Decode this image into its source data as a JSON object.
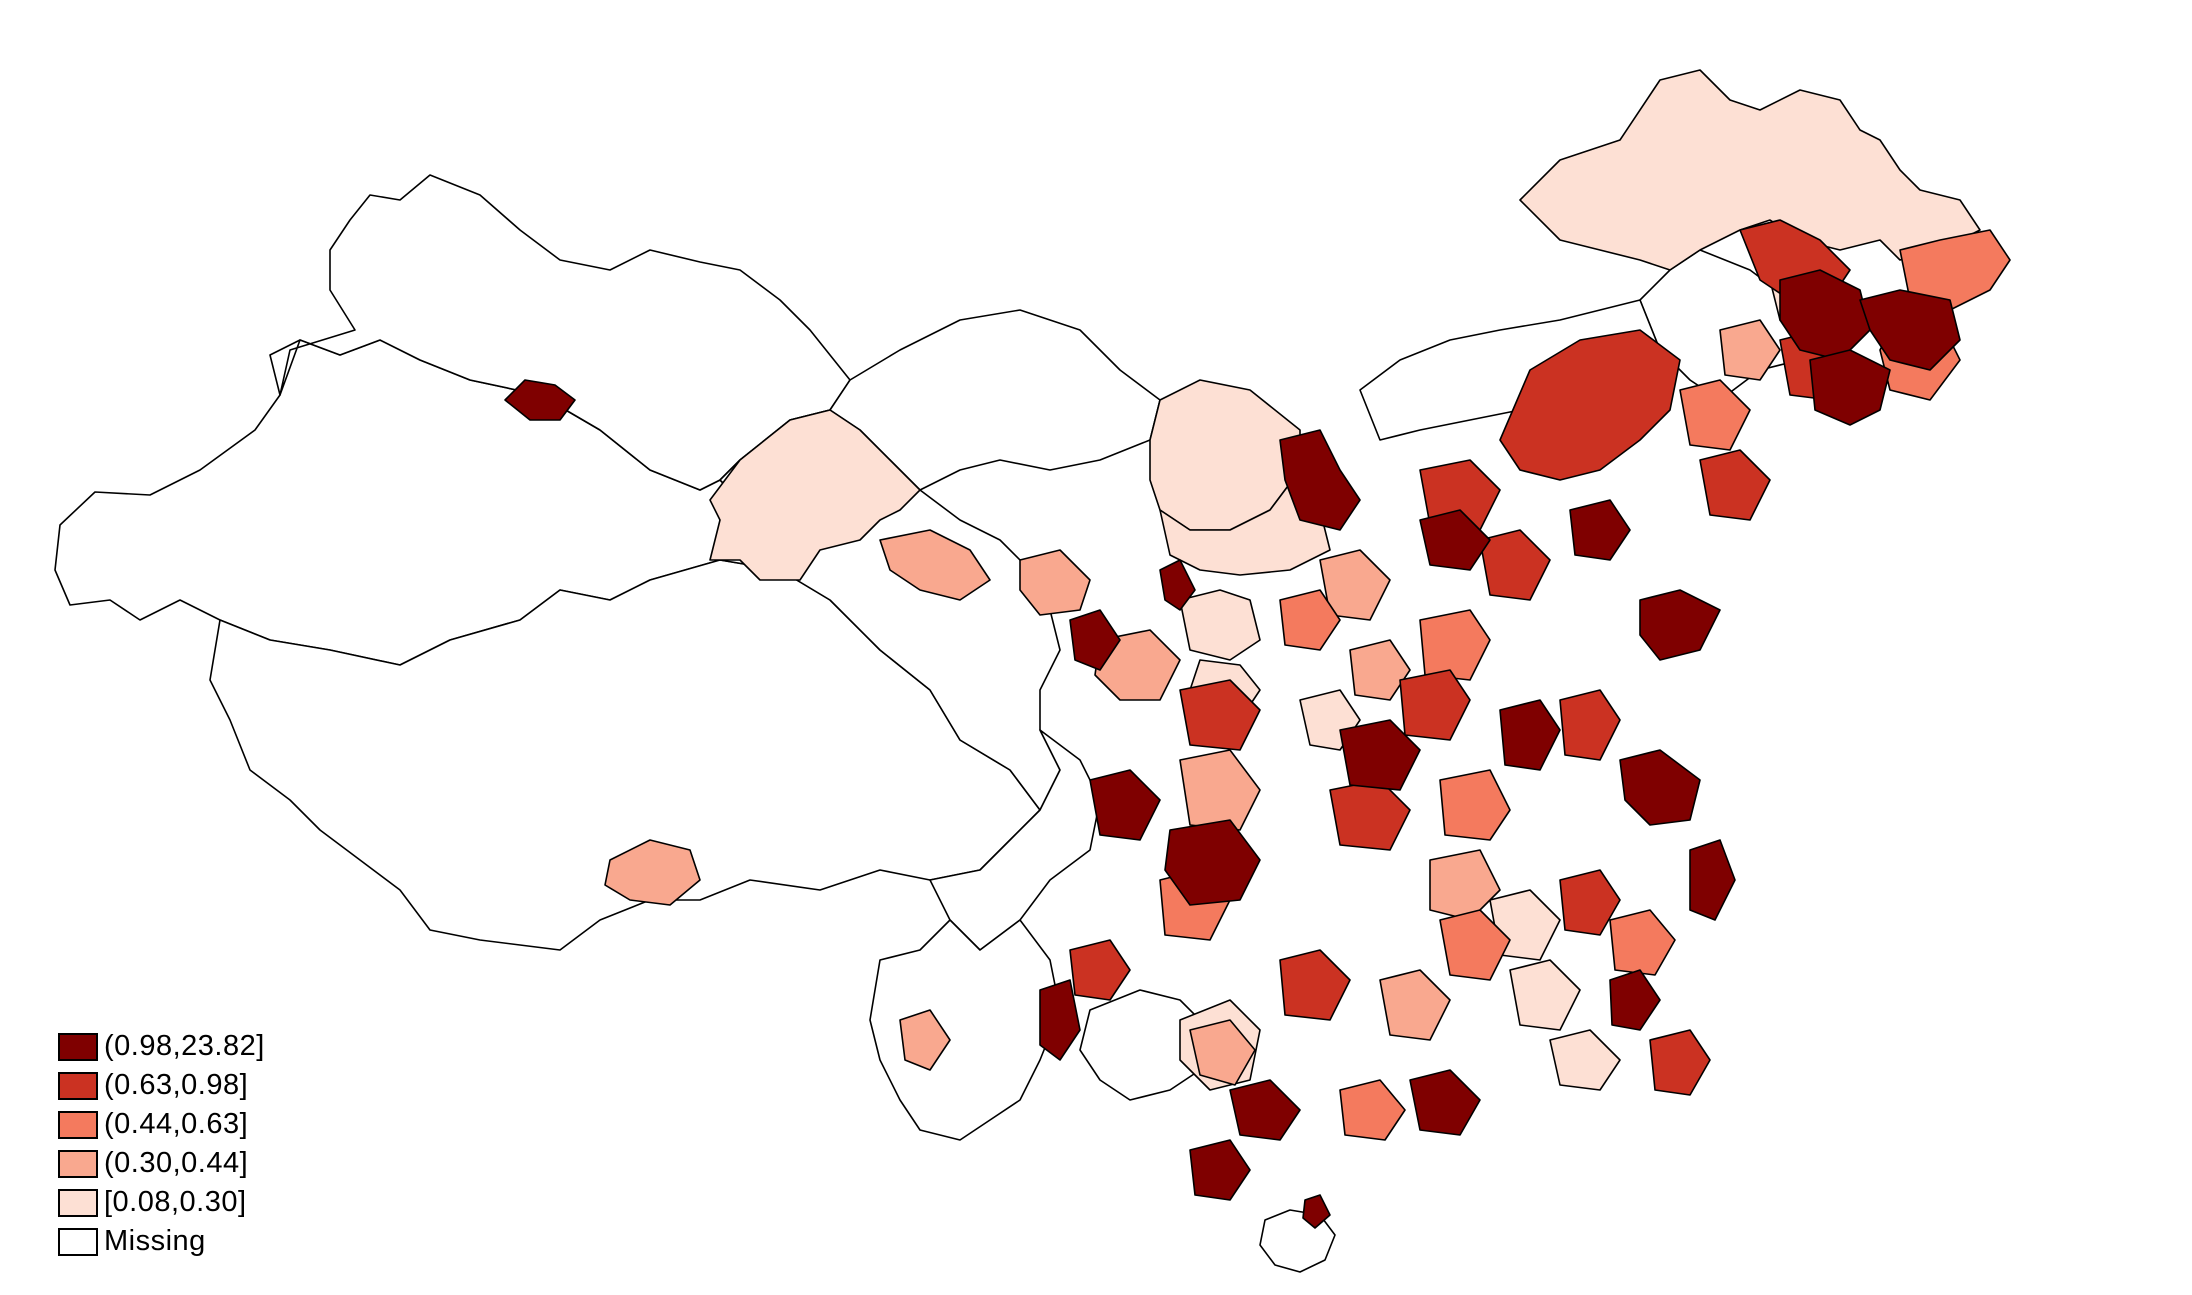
{
  "legend": {
    "items": [
      {
        "label": "(0.98,23.82]",
        "color": "#7f0000"
      },
      {
        "label": "(0.63,0.98]",
        "color": "#cb3222"
      },
      {
        "label": "(0.44,0.63]",
        "color": "#f47a5e"
      },
      {
        "label": "(0.30,0.44]",
        "color": "#f9a88f"
      },
      {
        "label": "[0.08,0.30]",
        "color": "#fde0d4"
      },
      {
        "label": "Missing",
        "color": "#ffffff"
      }
    ]
  },
  "colors": {
    "class1": "#7f0000",
    "class2": "#cb3222",
    "class3": "#f47a5e",
    "class4": "#f9a88f",
    "class5": "#fde0d4",
    "missing": "#ffffff",
    "border": "#000000"
  }
}
